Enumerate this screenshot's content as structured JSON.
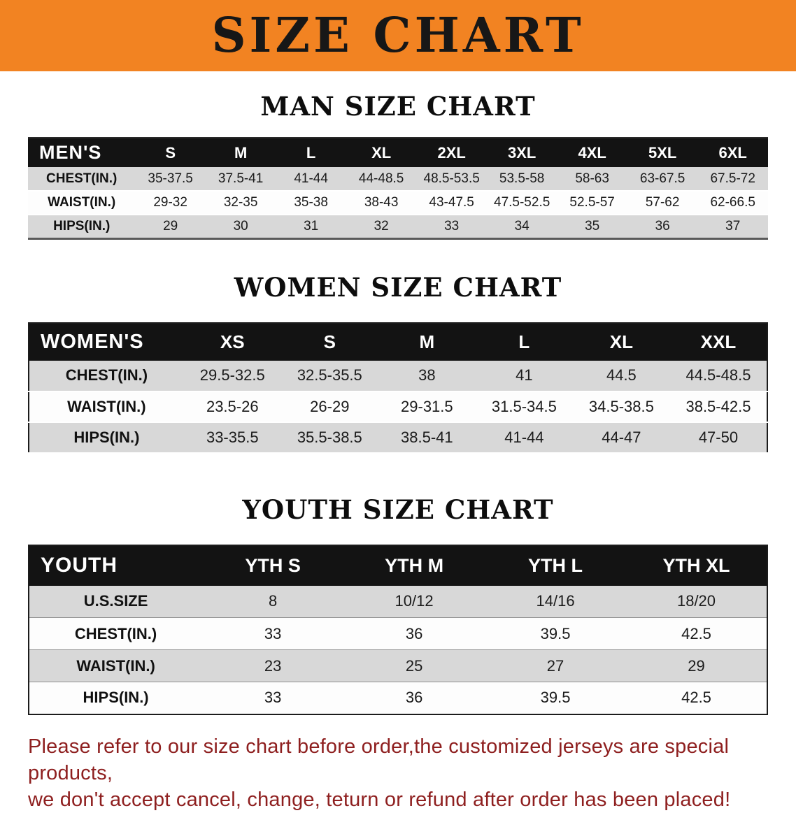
{
  "banner": {
    "title": "SIZE CHART"
  },
  "colors": {
    "banner_bg": "#F28322",
    "header_bg": "#131313",
    "stripe": "#d8d8d8",
    "disclaimer_text": "#8e1f1f"
  },
  "sections": [
    {
      "heading": "MAN SIZE CHART",
      "table": {
        "header": [
          "MEN'S",
          "S",
          "M",
          "L",
          "XL",
          "2XL",
          "3XL",
          "4XL",
          "5XL",
          "6XL"
        ],
        "rows": [
          [
            "CHEST(IN.)",
            "35-37.5",
            "37.5-41",
            "41-44",
            "44-48.5",
            "48.5-53.5",
            "53.5-58",
            "58-63",
            "63-67.5",
            "67.5-72"
          ],
          [
            "WAIST(IN.)",
            "29-32",
            "32-35",
            "35-38",
            "38-43",
            "43-47.5",
            "47.5-52.5",
            "52.5-57",
            "57-62",
            "62-66.5"
          ],
          [
            "HIPS(IN.)",
            "29",
            "30",
            "31",
            "32",
            "33",
            "34",
            "35",
            "36",
            "37"
          ]
        ]
      }
    },
    {
      "heading": "WOMEN SIZE CHART",
      "table": {
        "header": [
          "WOMEN'S",
          "XS",
          "S",
          "M",
          "L",
          "XL",
          "XXL"
        ],
        "rows": [
          [
            "CHEST(IN.)",
            "29.5-32.5",
            "32.5-35.5",
            "38",
            "41",
            "44.5",
            "44.5-48.5"
          ],
          [
            "WAIST(IN.)",
            "23.5-26",
            "26-29",
            "29-31.5",
            "31.5-34.5",
            "34.5-38.5",
            "38.5-42.5"
          ],
          [
            "HIPS(IN.)",
            "33-35.5",
            "35.5-38.5",
            "38.5-41",
            "41-44",
            "44-47",
            "47-50"
          ]
        ]
      }
    },
    {
      "heading": "YOUTH SIZE CHART",
      "table": {
        "header": [
          "YOUTH",
          "YTH S",
          "YTH M",
          "YTH L",
          "YTH XL"
        ],
        "rows": [
          [
            "U.S.SIZE",
            "8",
            "10/12",
            "14/16",
            "18/20"
          ],
          [
            "CHEST(IN.)",
            "33",
            "36",
            "39.5",
            "42.5"
          ],
          [
            "WAIST(IN.)",
            "23",
            "25",
            "27",
            "29"
          ],
          [
            "HIPS(IN.)",
            "33",
            "36",
            "39.5",
            "42.5"
          ]
        ]
      }
    }
  ],
  "disclaimer": {
    "line1": "Please refer to our size chart before order,the customized jerseys are special products,",
    "line2": "we don't accept cancel, change, teturn or refund after order has been placed!"
  }
}
